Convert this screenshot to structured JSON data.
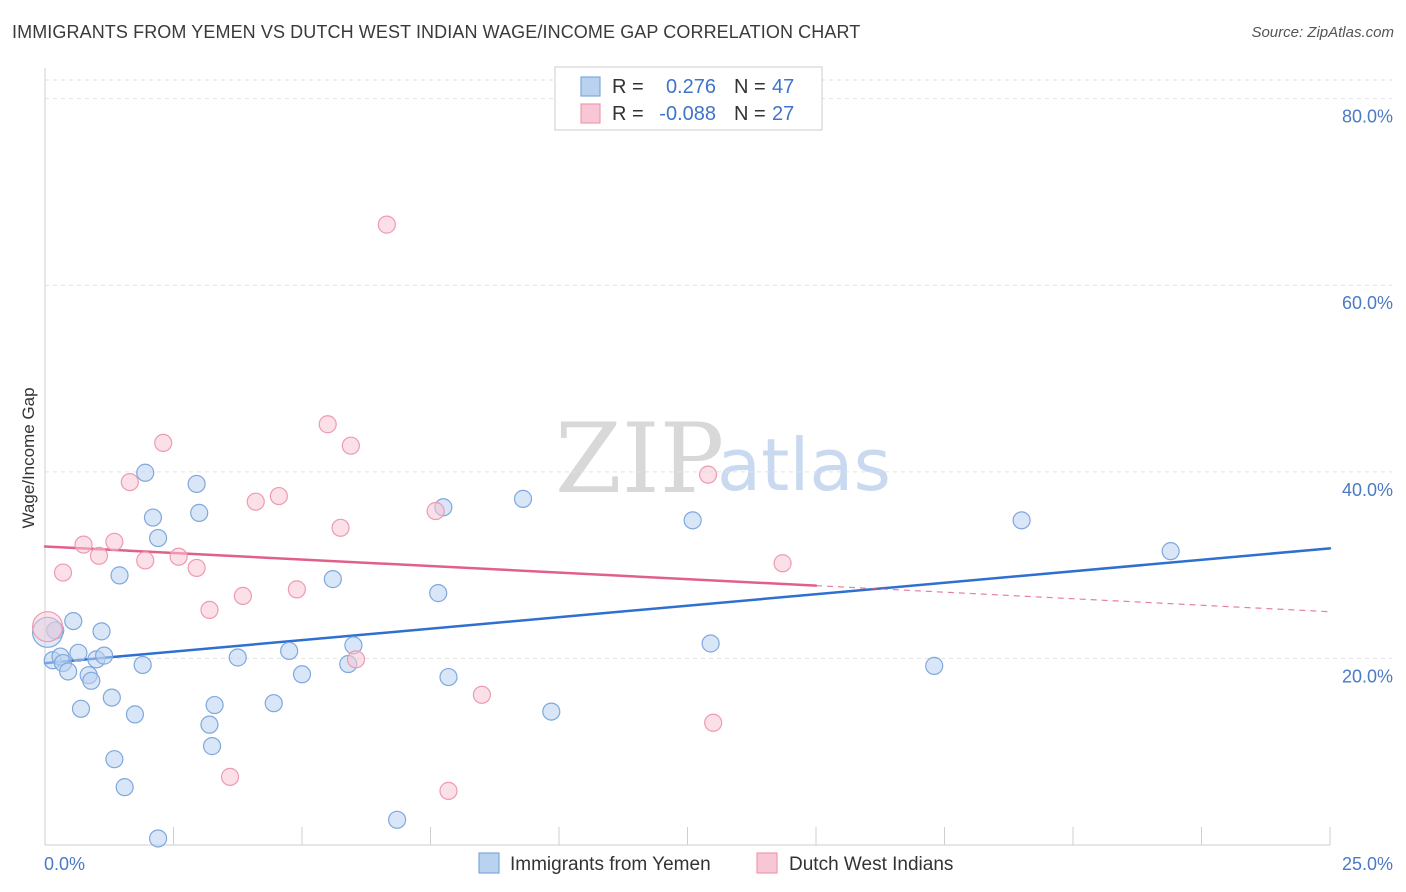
{
  "header": {
    "title": "IMMIGRANTS FROM YEMEN VS DUTCH WEST INDIAN WAGE/INCOME GAP CORRELATION CHART",
    "source": "Source: ZipAtlas.com"
  },
  "watermark": {
    "zip": "ZIP",
    "atlas": "atlas"
  },
  "colors": {
    "blue_fill": "#b8d2f0",
    "blue_stroke": "#7fa8dd",
    "blue_line": "#2f6fd0",
    "pink_fill": "#f8c7d5",
    "pink_stroke": "#ee9ab2",
    "pink_line": "#e0608a",
    "tick_text": "#4a7ac4"
  },
  "legend": {
    "rows": [
      {
        "r_label": "R =",
        "r_value": "0.276",
        "n_label": "N =",
        "n_value": "47"
      },
      {
        "r_label": "R =",
        "r_value": "-0.088",
        "n_label": "N =",
        "n_value": "27"
      }
    ]
  },
  "bottom_legend": {
    "items": [
      {
        "label": "Immigrants from Yemen"
      },
      {
        "label": "Dutch West Indians"
      }
    ]
  },
  "chart_data": {
    "type": "scatter",
    "title": "IMMIGRANTS FROM YEMEN VS DUTCH WEST INDIAN WAGE/INCOME GAP CORRELATION CHART",
    "xlabel": "",
    "ylabel": "Wage/Income Gap",
    "xlim": [
      0,
      25
    ],
    "ylim": [
      0,
      82
    ],
    "x_tick_labels": {
      "left": "0.0%",
      "right": "25.0%"
    },
    "y_ticks": [
      {
        "value": 20,
        "label": "20.0%"
      },
      {
        "value": 40,
        "label": "40.0%"
      },
      {
        "value": 60,
        "label": "60.0%"
      },
      {
        "value": 80,
        "label": "80.0%"
      }
    ],
    "grid": true,
    "legend_position": "top-center",
    "series": [
      {
        "name": "Immigrants from Yemen",
        "r": 0.276,
        "n": 47,
        "trend": {
          "x0": 0.0,
          "y0": 19.5,
          "x1": 25.0,
          "y1": 31.8,
          "solid_until": 25.0
        },
        "points": [
          [
            0.15,
            19.8
          ],
          [
            0.2,
            23.0
          ],
          [
            0.3,
            20.2
          ],
          [
            0.35,
            19.5
          ],
          [
            0.45,
            18.6
          ],
          [
            0.55,
            24.0
          ],
          [
            0.65,
            20.6
          ],
          [
            0.7,
            14.6
          ],
          [
            0.85,
            18.2
          ],
          [
            0.9,
            17.6
          ],
          [
            1.0,
            19.9
          ],
          [
            1.1,
            22.9
          ],
          [
            1.15,
            20.3
          ],
          [
            1.3,
            15.8
          ],
          [
            1.35,
            9.2
          ],
          [
            1.45,
            28.9
          ],
          [
            1.55,
            6.2
          ],
          [
            1.75,
            14.0
          ],
          [
            1.9,
            19.3
          ],
          [
            1.95,
            39.9
          ],
          [
            2.1,
            35.1
          ],
          [
            2.2,
            0.7
          ],
          [
            2.2,
            32.9
          ],
          [
            2.95,
            38.7
          ],
          [
            3.0,
            35.6
          ],
          [
            3.2,
            12.9
          ],
          [
            3.25,
            10.6
          ],
          [
            3.3,
            15.0
          ],
          [
            3.75,
            20.1
          ],
          [
            4.45,
            15.2
          ],
          [
            4.75,
            20.8
          ],
          [
            5.0,
            18.3
          ],
          [
            5.6,
            28.5
          ],
          [
            5.9,
            19.4
          ],
          [
            6.0,
            21.4
          ],
          [
            6.85,
            2.7
          ],
          [
            7.65,
            27.0
          ],
          [
            7.75,
            36.2
          ],
          [
            7.85,
            18.0
          ],
          [
            9.3,
            37.1
          ],
          [
            9.85,
            14.3
          ],
          [
            12.6,
            34.8
          ],
          [
            12.95,
            21.6
          ],
          [
            17.3,
            19.2
          ],
          [
            19.0,
            34.8
          ],
          [
            21.9,
            31.5
          ],
          [
            0.05,
            22.8
          ]
        ]
      },
      {
        "name": "Dutch West Indians",
        "r": -0.088,
        "n": 27,
        "trend": {
          "x0": 0.0,
          "y0": 32.0,
          "x1": 25.0,
          "y1": 25.0,
          "solid_until": 15.0
        },
        "points": [
          [
            0.05,
            23.4
          ],
          [
            0.35,
            29.2
          ],
          [
            0.75,
            32.2
          ],
          [
            1.05,
            31.0
          ],
          [
            1.35,
            32.5
          ],
          [
            1.65,
            38.9
          ],
          [
            1.95,
            30.5
          ],
          [
            2.3,
            43.1
          ],
          [
            2.6,
            30.9
          ],
          [
            2.95,
            29.7
          ],
          [
            3.2,
            25.2
          ],
          [
            3.6,
            7.3
          ],
          [
            3.85,
            26.7
          ],
          [
            4.1,
            36.8
          ],
          [
            4.55,
            37.4
          ],
          [
            4.9,
            27.4
          ],
          [
            5.5,
            45.1
          ],
          [
            5.75,
            34.0
          ],
          [
            5.95,
            42.8
          ],
          [
            6.05,
            19.9
          ],
          [
            6.65,
            66.5
          ],
          [
            7.6,
            35.8
          ],
          [
            7.85,
            5.8
          ],
          [
            8.5,
            16.1
          ],
          [
            12.9,
            39.7
          ],
          [
            13.0,
            13.1
          ],
          [
            14.35,
            30.2
          ]
        ]
      }
    ]
  }
}
